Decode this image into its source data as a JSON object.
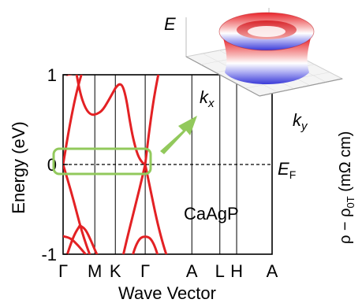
{
  "chart_data": [
    {
      "type": "line",
      "xlabel": "Wave Vector",
      "ylabel": "Energy (eV)",
      "ylim": [
        -1,
        1
      ],
      "yticks": [
        {
          "value": -1,
          "label": "-1"
        },
        {
          "value": 0,
          "label": "0"
        },
        {
          "value": 1,
          "label": "1"
        }
      ],
      "kpoints": [
        {
          "label": "Γ",
          "pos": 0.0
        },
        {
          "label": "M",
          "pos": 0.85
        },
        {
          "label": "K",
          "pos": 1.4
        },
        {
          "label": "Γ",
          "pos": 2.2
        },
        {
          "label": "A",
          "pos": 3.45
        },
        {
          "label": "L",
          "pos": 4.2
        },
        {
          "label": "H",
          "pos": 4.65
        },
        {
          "label": "A",
          "pos": 5.6
        }
      ],
      "xlim": [
        0,
        5.6
      ],
      "fermi_label_main": "E",
      "fermi_label_sub": "F",
      "material": "CaAgP",
      "right_axis_label": "ρ − ρ",
      "right_axis_sub": "0T",
      "right_axis_unit": " (mΩ cm)",
      "line_color": "#e32124",
      "highlight_color": "#92c95c",
      "series": [
        {
          "x": [
            0,
            0.25,
            0.5,
            0.75,
            1.0,
            1.2,
            1.4
          ],
          "y": [
            0.0,
            -0.35,
            -0.75,
            -1.05,
            -1.3,
            -1.4,
            -1.45
          ]
        },
        {
          "x": [
            0,
            0.18,
            0.38,
            0.6
          ],
          "y": [
            0.0,
            0.45,
            0.85,
            1.15
          ]
        },
        {
          "x": [
            0.3,
            0.45,
            0.6,
            0.75,
            0.9,
            1.05,
            1.2,
            1.4
          ],
          "y": [
            1.15,
            0.8,
            0.62,
            0.55,
            0.56,
            0.6,
            0.7,
            0.85
          ]
        },
        {
          "x": [
            0.1,
            0.35,
            0.6,
            0.85,
            1.05,
            1.25,
            1.4
          ],
          "y": [
            1.0,
            1.02,
            1.05,
            1.08,
            1.06,
            1.04,
            1.02
          ]
        },
        {
          "x": [
            1.4,
            1.5,
            1.6,
            1.7,
            1.78,
            1.88,
            2.0,
            2.12,
            2.2
          ],
          "y": [
            0.85,
            0.9,
            0.88,
            0.72,
            0.5,
            0.28,
            0.1,
            0.02,
            0.0
          ]
        },
        {
          "x": [
            2.2,
            2.3,
            2.4,
            2.48,
            2.56,
            2.62
          ],
          "y": [
            0.0,
            0.35,
            0.65,
            0.85,
            1.02,
            1.15
          ]
        },
        {
          "x": [
            1.55,
            1.7,
            1.85,
            2.0,
            2.1,
            2.2
          ],
          "y": [
            -1.12,
            -0.85,
            -0.6,
            -0.35,
            -0.18,
            0.0
          ]
        },
        {
          "x": [
            2.2,
            2.35,
            2.5,
            2.65,
            2.8,
            2.95
          ],
          "y": [
            0.0,
            -0.3,
            -0.6,
            -0.85,
            -1.05,
            -1.22
          ]
        },
        {
          "x": [
            0,
            0.15,
            0.3,
            0.45
          ],
          "y": [
            -1.15,
            -0.95,
            -0.78,
            -0.68
          ]
        },
        {
          "x": [
            0.45,
            0.6,
            0.75,
            0.9,
            1.05
          ],
          "y": [
            -0.68,
            -0.72,
            -0.85,
            -1.0,
            -1.12
          ]
        },
        {
          "x": [
            0,
            0.2,
            0.4,
            0.6
          ],
          "y": [
            -0.8,
            -0.82,
            -0.9,
            -1.0
          ]
        },
        {
          "x": [
            1.3,
            1.4,
            1.5,
            1.6
          ],
          "y": [
            -1.2,
            -1.08,
            -1.06,
            -1.15
          ]
        },
        {
          "x": [
            1.75,
            1.9,
            2.05,
            2.2,
            2.35,
            2.5,
            2.65
          ],
          "y": [
            -1.2,
            -0.95,
            -0.82,
            -0.8,
            -0.82,
            -0.95,
            -1.2
          ]
        }
      ]
    },
    {
      "type": "surface",
      "zlabel": "E",
      "xlabel": "k",
      "xlabel_sub": "x",
      "ylabel": "k",
      "ylabel_sub": "y",
      "colors": {
        "top": "#e8252b",
        "mid": "#ffffff",
        "bottom": "#3a3ad8"
      }
    }
  ]
}
